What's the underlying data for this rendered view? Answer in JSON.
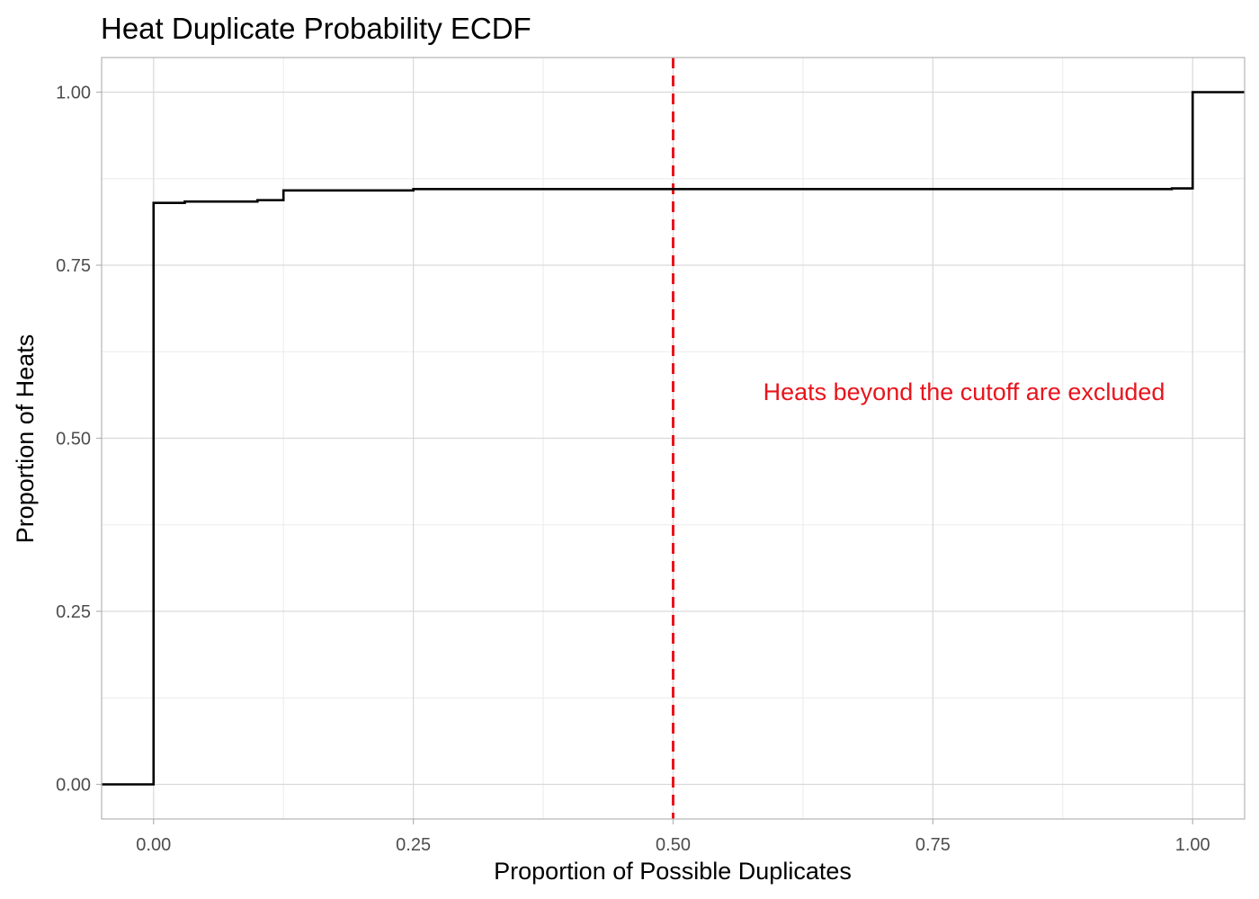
{
  "chart_data": {
    "type": "line",
    "subtype": "ecdf-step",
    "title": "Heat Duplicate Probability ECDF",
    "xlabel": "Proportion of Possible Duplicates",
    "ylabel": "Proportion of Heats",
    "xlim": [
      -0.05,
      1.05
    ],
    "ylim": [
      -0.05,
      1.05
    ],
    "x_ticks": [
      0.0,
      0.25,
      0.5,
      0.75,
      1.0
    ],
    "x_tick_labels": [
      "0.00",
      "0.25",
      "0.50",
      "0.75",
      "1.00"
    ],
    "y_ticks": [
      0.0,
      0.25,
      0.5,
      0.75,
      1.0
    ],
    "y_tick_labels": [
      "0.00",
      "0.25",
      "0.50",
      "0.75",
      "1.00"
    ],
    "grid": true,
    "legend": "none",
    "series": [
      {
        "color": "#000000",
        "steps": [
          {
            "x": -0.05,
            "y": 0.0
          },
          {
            "x": 0.0,
            "y": 0.84
          },
          {
            "x": 0.03,
            "y": 0.842
          },
          {
            "x": 0.1,
            "y": 0.844
          },
          {
            "x": 0.125,
            "y": 0.858
          },
          {
            "x": 0.25,
            "y": 0.86
          },
          {
            "x": 0.98,
            "y": 0.861
          },
          {
            "x": 1.0,
            "y": 1.0
          },
          {
            "x": 1.05,
            "y": 1.0
          }
        ]
      }
    ],
    "cutoff": {
      "x": 0.5,
      "color": "#e8141c",
      "style": "dashed"
    },
    "annotation": {
      "text": "Heats beyond the cutoff are excluded",
      "x": 0.78,
      "y": 0.555,
      "color": "#e8141c"
    }
  }
}
